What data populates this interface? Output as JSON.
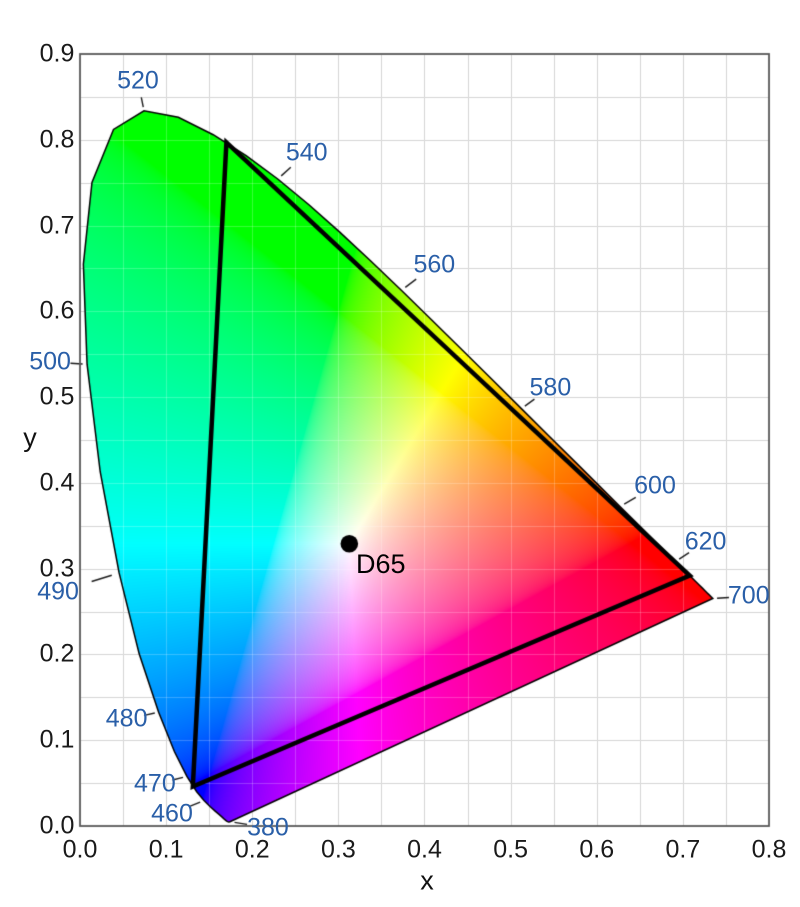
{
  "colors": {
    "background": "#ffffff",
    "wavelength_label": "#2a5fa8",
    "axis_label": "#1a1a1a",
    "grid": "#c9c9c9",
    "grid_over": "rgba(255,255,255,0.22)",
    "frame": "#595959",
    "locus_outline": "#000000",
    "triangle": "#000000",
    "white_point": "#000000"
  },
  "chart_data": {
    "type": "area",
    "subtype": "CIE 1931 xy chromaticity diagram",
    "xlabel": "x",
    "ylabel": "y",
    "xlim": [
      0.0,
      0.8
    ],
    "ylim": [
      0.0,
      0.9
    ],
    "grid": {
      "on": true,
      "step": 0.05
    },
    "xticks": [
      "0.0",
      "0.1",
      "0.2",
      "0.3",
      "0.4",
      "0.5",
      "0.6",
      "0.7",
      "0.8"
    ],
    "yticks": [
      "0.0",
      "0.1",
      "0.2",
      "0.3",
      "0.4",
      "0.5",
      "0.6",
      "0.7",
      "0.8",
      "0.9"
    ],
    "white_point": {
      "label": "D65",
      "x": 0.3127,
      "y": 0.329
    },
    "gamut_triangle": {
      "vertices": [
        [
          0.708,
          0.292
        ],
        [
          0.17,
          0.797
        ],
        [
          0.131,
          0.046
        ]
      ]
    },
    "wavelength_labels": [
      {
        "text": "380",
        "nm": 380,
        "offset": [
          38,
          6
        ]
      },
      {
        "text": "460",
        "nm": 460,
        "offset": [
          -32,
          13
        ]
      },
      {
        "text": "470",
        "nm": 470,
        "offset": [
          -32,
          8
        ]
      },
      {
        "text": "480",
        "nm": 480,
        "offset": [
          -32,
          7
        ]
      },
      {
        "text": "490",
        "nm": 490,
        "offset": [
          -61,
          19
        ]
      },
      {
        "text": "500",
        "nm": 500,
        "offset": [
          -37,
          -2
        ]
      },
      {
        "text": "520",
        "nm": 520,
        "offset": [
          -6,
          -30
        ]
      },
      {
        "text": "540",
        "nm": 540,
        "offset": [
          29,
          -26
        ]
      },
      {
        "text": "560",
        "nm": 560,
        "offset": [
          33,
          -25
        ]
      },
      {
        "text": "580",
        "nm": 580,
        "offset": [
          29,
          -21
        ]
      },
      {
        "text": "600",
        "nm": 600,
        "offset": [
          35,
          -20
        ]
      },
      {
        "text": "620",
        "nm": 620,
        "offset": [
          30,
          -20
        ]
      },
      {
        "text": "700",
        "nm": 700,
        "offset": [
          36,
          -2
        ]
      }
    ],
    "spectral_locus": [
      [
        380,
        0.1741,
        0.005
      ],
      [
        390,
        0.1738,
        0.0049
      ],
      [
        400,
        0.1733,
        0.0048
      ],
      [
        410,
        0.1726,
        0.0048
      ],
      [
        420,
        0.1714,
        0.0051
      ],
      [
        425,
        0.1703,
        0.0058
      ],
      [
        430,
        0.1689,
        0.0069
      ],
      [
        435,
        0.1669,
        0.0086
      ],
      [
        440,
        0.1644,
        0.0109
      ],
      [
        445,
        0.1611,
        0.0138
      ],
      [
        450,
        0.1566,
        0.0177
      ],
      [
        455,
        0.151,
        0.0227
      ],
      [
        460,
        0.144,
        0.0297
      ],
      [
        465,
        0.1355,
        0.0399
      ],
      [
        470,
        0.1241,
        0.0578
      ],
      [
        475,
        0.1096,
        0.0868
      ],
      [
        480,
        0.0913,
        0.1327
      ],
      [
        485,
        0.0687,
        0.2007
      ],
      [
        490,
        0.0454,
        0.295
      ],
      [
        495,
        0.0235,
        0.4127
      ],
      [
        500,
        0.0082,
        0.5384
      ],
      [
        505,
        0.0039,
        0.6548
      ],
      [
        510,
        0.0139,
        0.7502
      ],
      [
        515,
        0.0389,
        0.812
      ],
      [
        520,
        0.0743,
        0.8338
      ],
      [
        525,
        0.1142,
        0.8262
      ],
      [
        530,
        0.1547,
        0.8059
      ],
      [
        535,
        0.1929,
        0.7816
      ],
      [
        540,
        0.2296,
        0.7543
      ],
      [
        545,
        0.2658,
        0.7243
      ],
      [
        550,
        0.3016,
        0.6923
      ],
      [
        555,
        0.3373,
        0.6589
      ],
      [
        560,
        0.3731,
        0.6245
      ],
      [
        565,
        0.4087,
        0.5896
      ],
      [
        570,
        0.4441,
        0.5547
      ],
      [
        575,
        0.4788,
        0.5202
      ],
      [
        580,
        0.5125,
        0.4866
      ],
      [
        585,
        0.5448,
        0.4544
      ],
      [
        590,
        0.5752,
        0.4242
      ],
      [
        595,
        0.6029,
        0.3965
      ],
      [
        600,
        0.627,
        0.3725
      ],
      [
        605,
        0.6482,
        0.3514
      ],
      [
        610,
        0.6658,
        0.334
      ],
      [
        615,
        0.6801,
        0.3197
      ],
      [
        620,
        0.6915,
        0.3083
      ],
      [
        625,
        0.7006,
        0.2993
      ],
      [
        630,
        0.7079,
        0.292
      ],
      [
        635,
        0.714,
        0.2859
      ],
      [
        640,
        0.719,
        0.2809
      ],
      [
        645,
        0.723,
        0.277
      ],
      [
        650,
        0.726,
        0.274
      ],
      [
        655,
        0.7283,
        0.2717
      ],
      [
        660,
        0.73,
        0.27
      ],
      [
        665,
        0.7311,
        0.2689
      ],
      [
        670,
        0.732,
        0.268
      ],
      [
        675,
        0.7327,
        0.2673
      ],
      [
        680,
        0.7334,
        0.2666
      ],
      [
        685,
        0.734,
        0.266
      ],
      [
        690,
        0.7344,
        0.2656
      ],
      [
        695,
        0.7346,
        0.2654
      ],
      [
        700,
        0.7347,
        0.2653
      ]
    ]
  }
}
